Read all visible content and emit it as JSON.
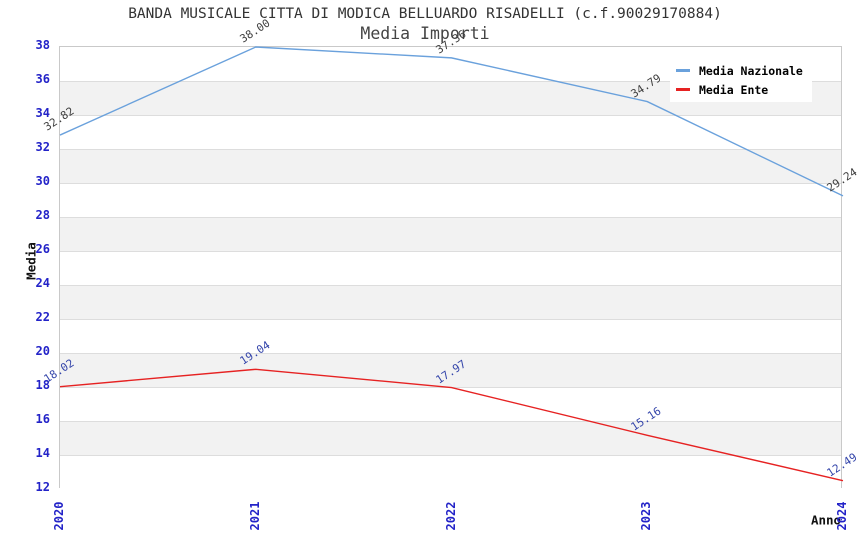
{
  "title": "BANDA MUSICALE CITTA DI MODICA BELLUARDO RISADELLI (c.f.90029170884)",
  "subtitle": "Media Importi",
  "y_axis": {
    "label": "Media",
    "ticks": [
      38,
      36,
      34,
      32,
      30,
      28,
      26,
      24,
      22,
      20,
      18,
      16,
      14,
      12
    ]
  },
  "x_axis": {
    "label": "Anno",
    "ticks": [
      "2020",
      "2021",
      "2022",
      "2023",
      "2024"
    ]
  },
  "legend": {
    "items": [
      {
        "label": "Media Nazionale",
        "color": "#6aa1dc"
      },
      {
        "label": "Media Ente",
        "color": "#e62222"
      }
    ]
  },
  "chart_data": {
    "type": "line",
    "x": [
      2020,
      2021,
      2022,
      2023,
      2024
    ],
    "series": [
      {
        "name": "Media Nazionale",
        "color": "#6aa1dc",
        "label_color": "#3f3f3f",
        "values": [
          32.82,
          38.0,
          37.36,
          34.79,
          29.24
        ]
      },
      {
        "name": "Media Ente",
        "color": "#e62222",
        "label_color": "#3344aa",
        "values": [
          18.02,
          19.04,
          17.97,
          15.16,
          12.49
        ]
      }
    ],
    "title": "BANDA MUSICALE CITTA DI MODICA BELLUARDO RISADELLI (c.f.90029170884)",
    "subtitle": "Media Importi",
    "xlabel": "Anno",
    "ylabel": "Media",
    "ylim": [
      12,
      38
    ],
    "ytick_step": 2,
    "band_colors": [
      "#ffffff",
      "#f2f2f2"
    ],
    "grid": "horizontal-bands",
    "legend_position": "top-right",
    "value_label_decimals": 2
  },
  "colors": {
    "tick_label": "#2323c8",
    "grid_line": "#dddddd",
    "plot_border": "#c9c9c9",
    "title_text": "#333333",
    "subtitle_text": "#444444",
    "axis_title_text": "#111111",
    "background": "#ffffff"
  }
}
